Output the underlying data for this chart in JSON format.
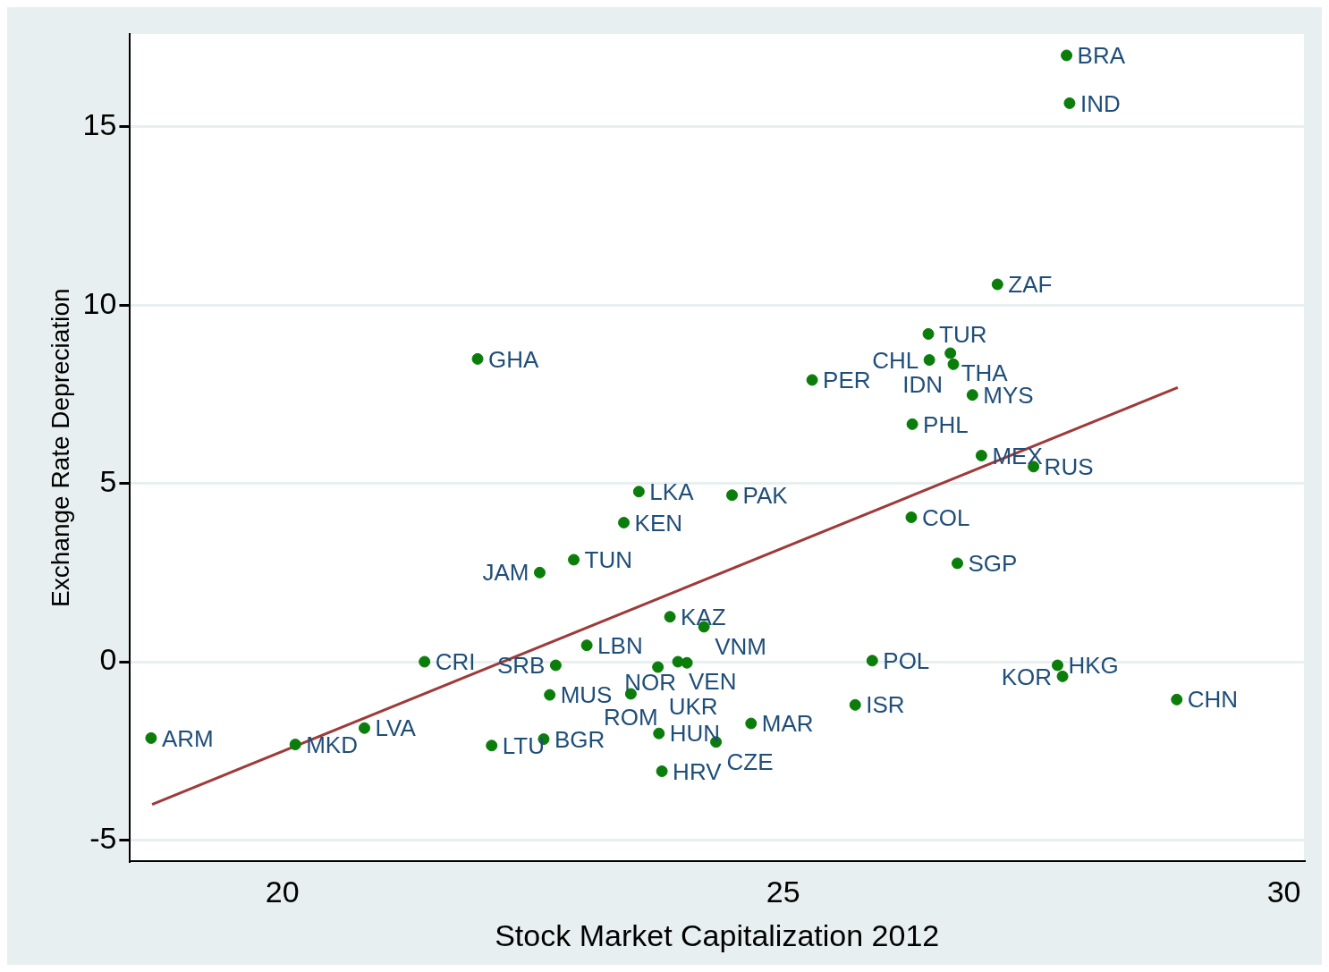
{
  "chart_data": {
    "type": "scatter",
    "xlabel": "Stock Market Capitalization 2012",
    "ylabel": "Exchange Rate Depreciation",
    "xlim": [
      18.48,
      30.2
    ],
    "ylim": [
      -5.6,
      17.6
    ],
    "xticks": [
      20,
      25,
      30
    ],
    "yticks": [
      -5,
      0,
      5,
      10,
      15
    ],
    "grid": "y",
    "legend": false,
    "series": [
      {
        "marker": "circle",
        "color": "#0a7d0a",
        "x": [
          27.83,
          27.86,
          27.14,
          26.45,
          26.67,
          26.46,
          26.7,
          26.89,
          25.29,
          21.95,
          26.29,
          26.98,
          27.5,
          23.56,
          24.49,
          23.41,
          26.28,
          26.74,
          22.91,
          22.57,
          23.87,
          24.21,
          23.04,
          21.42,
          25.89,
          23.95,
          24.04,
          22.73,
          23.75,
          27.74,
          27.79,
          22.67,
          23.48,
          28.93,
          25.72,
          24.68,
          20.82,
          18.69,
          23.76,
          22.61,
          24.33,
          20.13,
          22.09,
          23.79
        ],
        "values": [
          17.0,
          15.66,
          10.58,
          9.19,
          8.65,
          8.46,
          8.34,
          7.48,
          7.9,
          8.49,
          6.66,
          5.78,
          5.47,
          4.77,
          4.67,
          3.9,
          4.05,
          2.76,
          2.86,
          2.5,
          1.26,
          0.98,
          0.46,
          0.0,
          0.03,
          0.0,
          -0.03,
          -0.1,
          -0.15,
          -0.1,
          -0.41,
          -0.93,
          -0.9,
          -1.06,
          -1.21,
          -1.73,
          -1.86,
          -2.14,
          -2.01,
          -2.17,
          -2.25,
          -2.32,
          -2.35,
          -3.07
        ],
        "value_labels": [
          "BRA",
          "IND",
          "ZAF",
          "TUR",
          "THA",
          "CHL",
          "IDN",
          "MYS",
          "PER",
          "GHA",
          "PHL",
          "MEX",
          "RUS",
          "LKA",
          "PAK",
          "KEN",
          "COL",
          "SGP",
          "TUN",
          "JAM",
          "KAZ",
          "VNM",
          "LBN",
          "CRI",
          "POL",
          "VEN",
          "NOR",
          "SRB",
          "UKR",
          "HKG",
          "KOR",
          "MUS",
          "ROM",
          "CHN",
          "ISR",
          "MAR",
          "LVA",
          "ARM",
          "HUN",
          "BGR",
          "CZE",
          "MKD",
          "LTU",
          "HRV"
        ]
      },
      {
        "type": "line",
        "marker": "none",
        "color": "#9e3a3a",
        "x": [
          18.7,
          28.94
        ],
        "values": [
          -4.0,
          7.69
        ]
      }
    ]
  }
}
